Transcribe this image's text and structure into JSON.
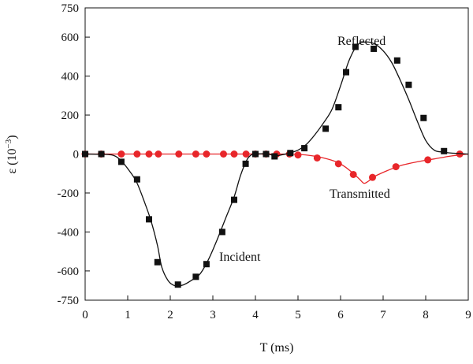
{
  "chart_data": {
    "type": "line",
    "title": "",
    "xlabel": "T (ms)",
    "ylabel_main": "ε (10",
    "ylabel_exp": "−3",
    "ylabel_close": ")",
    "xlim": [
      0,
      9
    ],
    "ylim": [
      -750,
      750
    ],
    "xticks": [
      0,
      1,
      2,
      3,
      4,
      5,
      6,
      7,
      8,
      9
    ],
    "yticks": [
      750,
      600,
      400,
      200,
      0,
      -200,
      -400,
      -600,
      -750
    ],
    "grid": false,
    "legend": "none",
    "annotations": {
      "incident": "Incident",
      "reflected": "Reflected",
      "transmitted": "Transmitted"
    },
    "series": [
      {
        "key": "black",
        "color": "#111111",
        "marker": "square",
        "curve": [
          [
            0,
            0
          ],
          [
            0.5,
            -2
          ],
          [
            0.7,
            -10
          ],
          [
            0.85,
            -35
          ],
          [
            1.0,
            -75
          ],
          [
            1.2,
            -140
          ],
          [
            1.4,
            -250
          ],
          [
            1.55,
            -345
          ],
          [
            1.7,
            -470
          ],
          [
            1.8,
            -580
          ],
          [
            1.95,
            -650
          ],
          [
            2.1,
            -675
          ],
          [
            2.3,
            -672
          ],
          [
            2.5,
            -648
          ],
          [
            2.7,
            -615
          ],
          [
            2.9,
            -540
          ],
          [
            3.1,
            -440
          ],
          [
            3.3,
            -330
          ],
          [
            3.5,
            -220
          ],
          [
            3.65,
            -110
          ],
          [
            3.8,
            -30
          ],
          [
            3.9,
            -5
          ],
          [
            4.0,
            0
          ],
          [
            4.3,
            0
          ],
          [
            4.45,
            -10
          ],
          [
            4.6,
            -5
          ],
          [
            4.8,
            5
          ],
          [
            5.0,
            20
          ],
          [
            5.2,
            50
          ],
          [
            5.4,
            100
          ],
          [
            5.6,
            160
          ],
          [
            5.8,
            230
          ],
          [
            6.0,
            350
          ],
          [
            6.2,
            480
          ],
          [
            6.4,
            560
          ],
          [
            6.6,
            575
          ],
          [
            6.8,
            565
          ],
          [
            7.0,
            530
          ],
          [
            7.2,
            470
          ],
          [
            7.4,
            380
          ],
          [
            7.6,
            280
          ],
          [
            7.8,
            170
          ],
          [
            8.0,
            70
          ],
          [
            8.2,
            20
          ],
          [
            8.4,
            10
          ],
          [
            8.6,
            5
          ],
          [
            9.0,
            0
          ]
        ],
        "points": [
          [
            0.0,
            0
          ],
          [
            0.38,
            0
          ],
          [
            0.85,
            -40
          ],
          [
            1.22,
            -130
          ],
          [
            1.5,
            -335
          ],
          [
            1.7,
            -555
          ],
          [
            2.18,
            -670
          ],
          [
            2.6,
            -630
          ],
          [
            2.85,
            -565
          ],
          [
            3.22,
            -400
          ],
          [
            3.5,
            -235
          ],
          [
            3.77,
            -50
          ],
          [
            4.0,
            0
          ],
          [
            4.25,
            0
          ],
          [
            4.45,
            -12
          ],
          [
            4.82,
            5
          ],
          [
            5.15,
            30
          ],
          [
            5.65,
            130
          ],
          [
            5.95,
            240
          ],
          [
            6.13,
            420
          ],
          [
            6.35,
            550
          ],
          [
            6.78,
            540
          ],
          [
            7.33,
            480
          ],
          [
            7.6,
            355
          ],
          [
            7.95,
            185
          ],
          [
            8.43,
            15
          ]
        ]
      },
      {
        "key": "red",
        "color": "#e8262a",
        "marker": "circle",
        "curve": [
          [
            0,
            0
          ],
          [
            4.5,
            0
          ],
          [
            5.0,
            -2
          ],
          [
            5.3,
            -8
          ],
          [
            5.6,
            -20
          ],
          [
            5.9,
            -40
          ],
          [
            6.1,
            -65
          ],
          [
            6.3,
            -100
          ],
          [
            6.45,
            -130
          ],
          [
            6.55,
            -150
          ],
          [
            6.65,
            -140
          ],
          [
            6.8,
            -115
          ],
          [
            7.1,
            -85
          ],
          [
            7.4,
            -60
          ],
          [
            7.8,
            -40
          ],
          [
            8.2,
            -25
          ],
          [
            8.6,
            -10
          ],
          [
            9.0,
            0
          ]
        ],
        "points": [
          [
            0.0,
            0
          ],
          [
            0.38,
            0
          ],
          [
            0.85,
            0
          ],
          [
            1.22,
            0
          ],
          [
            1.5,
            0
          ],
          [
            1.72,
            0
          ],
          [
            2.2,
            0
          ],
          [
            2.6,
            0
          ],
          [
            2.85,
            0
          ],
          [
            3.25,
            0
          ],
          [
            3.5,
            0
          ],
          [
            3.78,
            0
          ],
          [
            4.0,
            0
          ],
          [
            4.25,
            0
          ],
          [
            4.5,
            0
          ],
          [
            4.8,
            0
          ],
          [
            5.0,
            -5
          ],
          [
            5.45,
            -20
          ],
          [
            5.95,
            -50
          ],
          [
            6.3,
            -105
          ],
          [
            6.75,
            -120
          ],
          [
            7.3,
            -65
          ],
          [
            8.05,
            -30
          ],
          [
            8.8,
            0
          ]
        ]
      }
    ]
  }
}
